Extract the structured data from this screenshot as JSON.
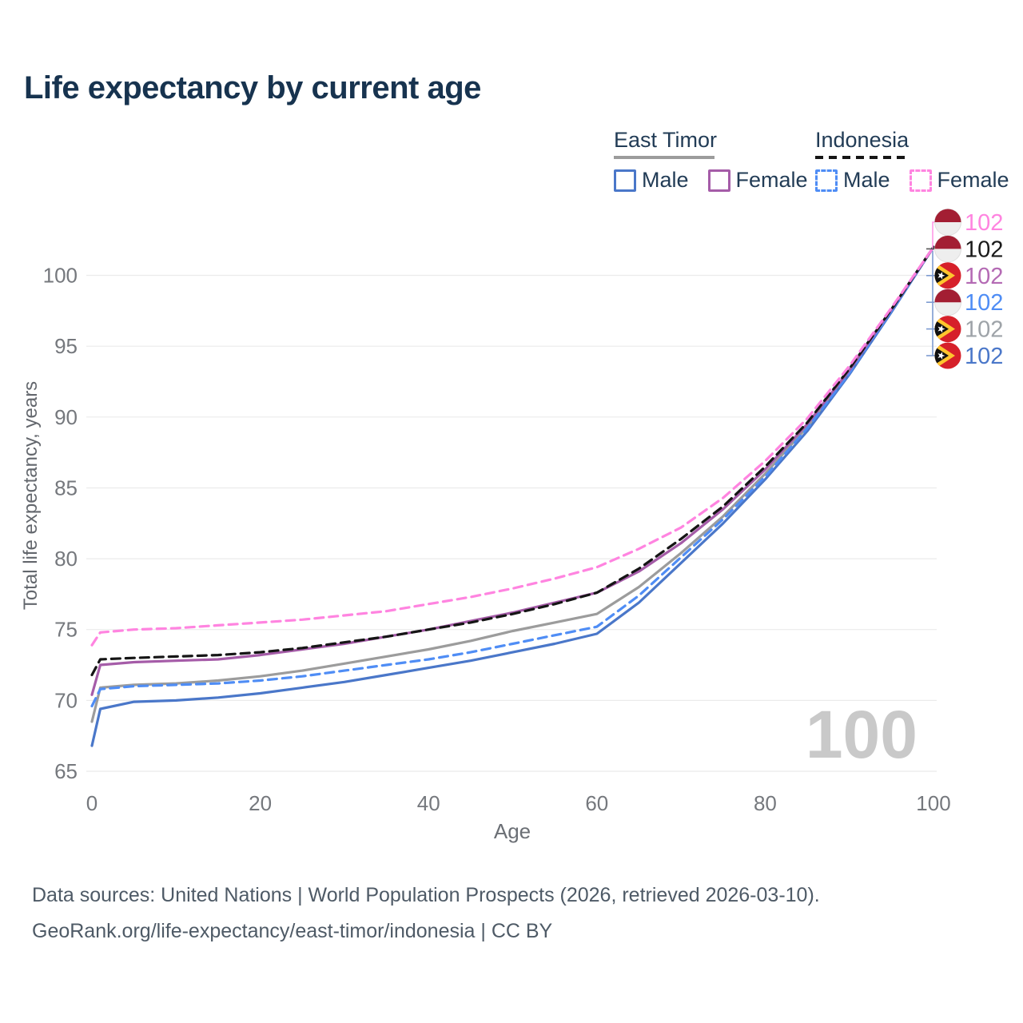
{
  "title": "Life expectancy by current age",
  "watermark": "100",
  "legend": {
    "groups": [
      {
        "label": "East Timor",
        "line_color": "#9c9c9c",
        "line_style": "solid",
        "items": [
          {
            "label": "Male",
            "color": "#4a77c9",
            "dashed": false
          },
          {
            "label": "Female",
            "color": "#a55ca8",
            "dashed": false
          }
        ]
      },
      {
        "label": "Indonesia",
        "line_color": "#151515",
        "line_style": "dashed",
        "items": [
          {
            "label": "Male",
            "color": "#4f8df5",
            "dashed": true
          },
          {
            "label": "Female",
            "color": "#ff84e0",
            "dashed": true
          }
        ]
      }
    ]
  },
  "chart_data": {
    "type": "line",
    "title": "Life expectancy by current age",
    "xlabel": "Age",
    "ylabel": "Total life expectancy, years",
    "xlim": [
      0,
      100
    ],
    "ylim": [
      63,
      103.5
    ],
    "x_ticks": [
      0,
      20,
      40,
      60,
      80,
      100
    ],
    "y_ticks": [
      65,
      70,
      75,
      80,
      85,
      90,
      95,
      100
    ],
    "grid": "horizontal-only",
    "legend_position": "top-right",
    "x": [
      0,
      1,
      5,
      10,
      15,
      20,
      25,
      30,
      35,
      40,
      45,
      50,
      55,
      60,
      65,
      70,
      75,
      80,
      85,
      90,
      95,
      100
    ],
    "series": [
      {
        "name": "East Timor Both sexes",
        "country": "East Timor",
        "sex": "Both",
        "color": "#9c9c9c",
        "dashed": false,
        "values": [
          68.5,
          70.9,
          71.1,
          71.2,
          71.4,
          71.7,
          72.1,
          72.6,
          73.1,
          73.6,
          74.2,
          74.9,
          75.5,
          76.1,
          78.0,
          80.4,
          83.0,
          86.0,
          89.3,
          93.2,
          97.5,
          102
        ]
      },
      {
        "name": "East Timor Male",
        "country": "East Timor",
        "sex": "Male",
        "color": "#4a77c9",
        "dashed": false,
        "values": [
          66.8,
          69.4,
          69.9,
          70.0,
          70.2,
          70.5,
          70.9,
          71.3,
          71.8,
          72.3,
          72.8,
          73.4,
          74.0,
          74.7,
          76.9,
          79.7,
          82.5,
          85.6,
          89.0,
          93.0,
          97.4,
          102
        ]
      },
      {
        "name": "Indonesia Male",
        "country": "Indonesia",
        "sex": "Male",
        "color": "#4f8df5",
        "dashed": true,
        "values": [
          69.6,
          70.8,
          71.0,
          71.1,
          71.2,
          71.4,
          71.7,
          72.1,
          72.5,
          72.9,
          73.4,
          74.0,
          74.6,
          75.2,
          77.4,
          80.1,
          82.8,
          85.8,
          89.2,
          93.1,
          97.5,
          102
        ]
      },
      {
        "name": "East Timor Female",
        "country": "East Timor",
        "sex": "Female",
        "color": "#a55ca8",
        "dashed": false,
        "values": [
          70.4,
          72.5,
          72.7,
          72.8,
          72.9,
          73.2,
          73.6,
          74.0,
          74.5,
          75.0,
          75.6,
          76.2,
          76.9,
          77.6,
          79.1,
          81.1,
          83.5,
          86.3,
          89.5,
          93.3,
          97.6,
          102
        ]
      },
      {
        "name": "Indonesia Both sexes",
        "country": "Indonesia",
        "sex": "Both",
        "color": "#151515",
        "dashed": true,
        "values": [
          71.8,
          72.9,
          73.0,
          73.1,
          73.2,
          73.4,
          73.7,
          74.1,
          74.5,
          75.0,
          75.5,
          76.1,
          76.8,
          77.6,
          79.3,
          81.4,
          83.7,
          86.5,
          89.6,
          93.4,
          97.6,
          102
        ]
      },
      {
        "name": "Indonesia Female",
        "country": "Indonesia",
        "sex": "Female",
        "color": "#ff84e0",
        "dashed": true,
        "values": [
          73.9,
          74.8,
          75.0,
          75.1,
          75.3,
          75.5,
          75.7,
          76.0,
          76.3,
          76.8,
          77.3,
          77.9,
          78.6,
          79.4,
          80.7,
          82.2,
          84.3,
          86.9,
          89.9,
          93.6,
          97.7,
          102
        ]
      }
    ]
  },
  "end_labels": [
    {
      "series": "Indonesia Female",
      "flag": "indonesia",
      "value": "102",
      "color": "#ff84e0"
    },
    {
      "series": "Indonesia Both sexes",
      "flag": "indonesia",
      "value": "102",
      "color": "#1a1a1a"
    },
    {
      "series": "East Timor Female",
      "flag": "east-timor",
      "value": "102",
      "color": "#b46ab4"
    },
    {
      "series": "Indonesia Male",
      "flag": "indonesia",
      "value": "102",
      "color": "#4f8df5"
    },
    {
      "series": "East Timor Both sexes",
      "flag": "east-timor",
      "value": "102",
      "color": "#9ea3a8"
    },
    {
      "series": "East Timor Male",
      "flag": "east-timor",
      "value": "102",
      "color": "#4a77c9"
    }
  ],
  "flag_colors": {
    "indonesia_red": "#a31e33",
    "indonesia_white": "#eeeeee",
    "east_timor_red": "#d6202a",
    "east_timor_yellow": "#fec52e",
    "east_timor_black": "#101010",
    "east_timor_star": "#ffffff"
  },
  "footer": {
    "line1": "Data sources: United Nations | World Population Prospects (2026, retrieved 2026-03-10).",
    "line2": "GeoRank.org/life-expectancy/east-timor/indonesia | CC BY"
  }
}
